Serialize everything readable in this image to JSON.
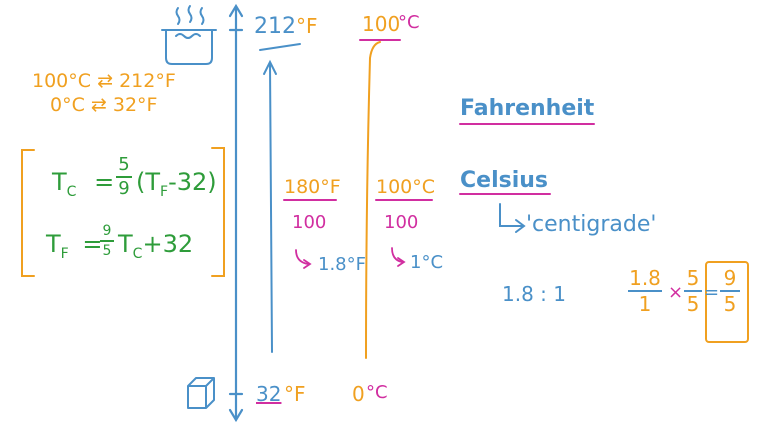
{
  "thermometer": {
    "top_f_value": "212",
    "top_f_unit": "°F",
    "top_c_value": "100",
    "top_c_unit": "°C",
    "bottom_f_value": "32",
    "bottom_f_unit": "°F",
    "bottom_c_value": "0",
    "bottom_c_unit": "°C"
  },
  "equivalences": [
    {
      "left": "100°C",
      "arrow": "⇄",
      "right": "212°F"
    },
    {
      "left": "0°C",
      "arrow": "⇄",
      "right": "32°F"
    }
  ],
  "formulas": {
    "tc_lhs": "T",
    "tc_sub": "C",
    "tc_eq": "=",
    "tc_num": "5",
    "tc_den": "9",
    "tc_rest": "(T",
    "tc_rest_sub": "F",
    "tc_rest_tail": "-32)",
    "tf_lhs": "T",
    "tf_sub": "F",
    "tf_eq": "=",
    "tf_num": "9",
    "tf_den": "5",
    "tf_mid": "T",
    "tf_mid_sub": "C",
    "tf_tail": "+32"
  },
  "ranges": {
    "f_range": "180°F",
    "f_den": "100",
    "f_per": "1.8°F",
    "c_range": "100°C",
    "c_den": "100",
    "c_per": "1°C"
  },
  "labels": {
    "fahrenheit": "Fahrenheit",
    "celsius": "Celsius",
    "centigrade": "'centigrade'",
    "ratio": "1.8 : 1"
  },
  "ratio_calc": {
    "a_num": "1.8",
    "a_den": "1",
    "times": "×",
    "b_num": "5",
    "b_den": "5",
    "eq": "=",
    "c_num": "9",
    "c_den": "5"
  },
  "colors": {
    "blue": "#4a90c8",
    "orange": "#f0a020",
    "magenta": "#d12ea0",
    "green": "#2e9c3a"
  },
  "icons": [
    "boiling-pot-icon",
    "ice-cube-icon"
  ]
}
